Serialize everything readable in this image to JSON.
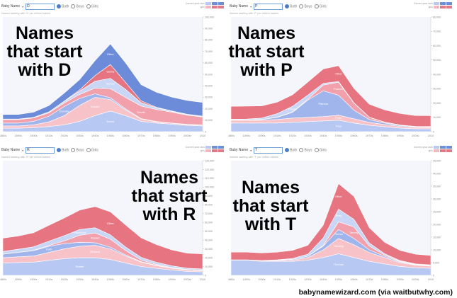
{
  "toolbar": {
    "name_label": "Baby Name",
    "opt_both": "Both",
    "opt_boys": "Boys",
    "opt_girls": "Girls",
    "ctl_row1": "Current year  rank",
    "ctl_row2": "girls"
  },
  "panels": [
    {
      "letter": "D",
      "input": "D",
      "subtitle": "Names starting with 'D' per million babies",
      "headline": [
        "Names",
        "that start",
        "with D"
      ]
    },
    {
      "letter": "P",
      "input": "P",
      "subtitle": "Names starting with 'P' per million babies",
      "headline": [
        "Names",
        "that start",
        "with P"
      ]
    },
    {
      "letter": "R",
      "input": "R",
      "subtitle": "Names starting with 'R' per million babies",
      "headline": [
        "Names",
        "that start",
        "with R"
      ]
    },
    {
      "letter": "T",
      "input": "T",
      "subtitle": "Names starting with 'T' per million babies",
      "headline": [
        "Names",
        "that start",
        "with T"
      ]
    }
  ],
  "credit": "babynamewizard.com (via waitbutwhy.com)",
  "colors": {
    "boy_light": "#b7c8f3",
    "boy_mid": "#9fb5ec",
    "boy_dark": "#6c8cd9",
    "girl_light": "#f8c2c9",
    "girl_mid": "#f2a0ac",
    "girl_dark": "#e67481"
  },
  "chart_data": [
    {
      "type": "area",
      "title": "Names that start with D",
      "x": [
        "1880s",
        "1890s",
        "1900s",
        "1910s",
        "1920s",
        "1930s",
        "1940s",
        "1950s",
        "1960s",
        "1970s",
        "1980s",
        "1990s",
        "2000s",
        "2010"
      ],
      "ylim": [
        0,
        100000
      ],
      "yticks": [
        "100,000",
        "90,000",
        "80,000",
        "70,000",
        "60,000",
        "50,000",
        "40,000",
        "30,000",
        "20,000",
        "10,000",
        "0"
      ],
      "series": [
        {
          "name": "David",
          "values": [
            3000,
            3000,
            3500,
            4500,
            6000,
            9000,
            14000,
            18000,
            14000,
            9000,
            7500,
            6500,
            5500,
            5000
          ]
        },
        {
          "name": "Donald",
          "values": [
            2000,
            2000,
            2500,
            4000,
            8000,
            14000,
            16000,
            10000,
            5000,
            2000,
            1000,
            800,
            700,
            600
          ]
        },
        {
          "name": "Dorothy",
          "values": [
            2500,
            2500,
            3000,
            5000,
            8000,
            6000,
            3000,
            1500,
            800,
            400,
            300,
            200,
            200,
            200
          ]
        },
        {
          "name": "Daniel",
          "values": [
            3000,
            3000,
            3000,
            3000,
            3000,
            3500,
            5000,
            8000,
            10000,
            11000,
            10500,
            9500,
            8000,
            7000
          ]
        },
        {
          "name": "Dennis",
          "values": [
            500,
            500,
            500,
            800,
            1500,
            3000,
            6000,
            9000,
            7000,
            3000,
            1500,
            800,
            600,
            500
          ]
        },
        {
          "name": "Debra",
          "values": [
            0,
            0,
            0,
            0,
            200,
            1000,
            5000,
            12000,
            6000,
            1500,
            500,
            300,
            200,
            200
          ]
        },
        {
          "name": "Other",
          "values": [
            4000,
            4000,
            4500,
            5500,
            7000,
            9000,
            13000,
            18000,
            17000,
            14000,
            13000,
            12000,
            12000,
            12000
          ]
        }
      ]
    },
    {
      "type": "area",
      "title": "Names that start with P",
      "x": [
        "1880s",
        "1890s",
        "1900s",
        "1910s",
        "1920s",
        "1930s",
        "1940s",
        "1950s",
        "1960s",
        "1970s",
        "1980s",
        "1990s",
        "2000s",
        "2010"
      ],
      "ylim": [
        0,
        80000
      ],
      "yticks": [
        "80,000",
        "70,000",
        "60,000",
        "50,000",
        "40,000",
        "30,000",
        "20,000",
        "10,000",
        "0"
      ],
      "series": [
        {
          "name": "Paul",
          "values": [
            6000,
            6000,
            6000,
            6000,
            6500,
            7000,
            7500,
            8000,
            6000,
            4500,
            3500,
            2500,
            2000,
            2000
          ]
        },
        {
          "name": "Peter",
          "values": [
            2000,
            2000,
            2000,
            2500,
            3000,
            3000,
            3000,
            3500,
            3000,
            2000,
            1500,
            1200,
            1000,
            1000
          ]
        },
        {
          "name": "Patricia",
          "values": [
            200,
            200,
            500,
            1500,
            4000,
            12000,
            18000,
            14000,
            6000,
            2000,
            1000,
            600,
            400,
            300
          ]
        },
        {
          "name": "Pamela",
          "values": [
            0,
            0,
            0,
            100,
            200,
            600,
            4000,
            9000,
            5000,
            1500,
            600,
            300,
            200,
            200
          ]
        },
        {
          "name": "Phyllis",
          "values": [
            500,
            600,
            1000,
            2500,
            4000,
            3000,
            1200,
            500,
            200,
            100,
            100,
            100,
            100,
            100
          ]
        },
        {
          "name": "Other",
          "values": [
            9000,
            9000,
            8500,
            8000,
            8000,
            9000,
            10000,
            11000,
            10000,
            9000,
            8500,
            8000,
            7500,
            7500
          ]
        }
      ]
    },
    {
      "type": "area",
      "title": "Names that start with R",
      "x": [
        "1880s",
        "1890s",
        "1900s",
        "1910s",
        "1920s",
        "1930s",
        "1940s",
        "1950s",
        "1960s",
        "1970s",
        "1980s",
        "1990s",
        "2000s",
        "2010"
      ],
      "ylim": [
        0,
        130000
      ],
      "yticks": [
        "130,000",
        "120,000",
        "110,000",
        "100,000",
        "90,000",
        "80,000",
        "70,000",
        "60,000",
        "50,000",
        "40,000",
        "30,000",
        "20,000",
        "10,000",
        "0"
      ],
      "series": [
        {
          "name": "Robert",
          "values": [
            14000,
            14500,
            15000,
            17000,
            19000,
            20000,
            20000,
            18000,
            14000,
            10000,
            8000,
            6000,
            4500,
            4000
          ]
        },
        {
          "name": "Richard",
          "values": [
            6000,
            6500,
            7000,
            9000,
            11000,
            13000,
            14000,
            12000,
            8000,
            5000,
            3000,
            2000,
            1500,
            1200
          ]
        },
        {
          "name": "Ruth",
          "values": [
            4000,
            5000,
            6000,
            7000,
            6000,
            4500,
            3000,
            2000,
            1000,
            500,
            400,
            300,
            300,
            300
          ]
        },
        {
          "name": "Ronald",
          "values": [
            100,
            100,
            300,
            800,
            3000,
            8000,
            11000,
            9000,
            5000,
            2000,
            900,
            500,
            300,
            300
          ]
        },
        {
          "name": "Raymond",
          "values": [
            3000,
            3500,
            4000,
            5000,
            6000,
            6500,
            6000,
            5000,
            4000,
            3000,
            2500,
            2000,
            1500,
            1500
          ]
        },
        {
          "name": "Other",
          "values": [
            15000,
            15000,
            16000,
            18000,
            20000,
            22000,
            24000,
            26000,
            25000,
            22000,
            20000,
            18000,
            17000,
            17000
          ]
        }
      ]
    },
    {
      "type": "area",
      "title": "Names that start with T",
      "x": [
        "1880s",
        "1890s",
        "1900s",
        "1910s",
        "1920s",
        "1930s",
        "1940s",
        "1950s",
        "1960s",
        "1970s",
        "1980s",
        "1990s",
        "2000s",
        "2010"
      ],
      "ylim": [
        0,
        45000
      ],
      "yticks": [
        "45,000",
        "40,000",
        "35,000",
        "30,000",
        "25,000",
        "20,000",
        "15,000",
        "10,000",
        "5,000",
        "0"
      ],
      "series": [
        {
          "name": "Thomas",
          "values": [
            6000,
            6000,
            5500,
            5500,
            5500,
            6000,
            7000,
            8500,
            7000,
            5500,
            4500,
            3500,
            3000,
            2800
          ]
        },
        {
          "name": "Timothy",
          "values": [
            100,
            100,
            200,
            300,
            500,
            1000,
            3000,
            6000,
            5000,
            3500,
            2500,
            1500,
            1000,
            800
          ]
        },
        {
          "name": "Teresa",
          "values": [
            0,
            0,
            100,
            200,
            300,
            500,
            1500,
            3500,
            2500,
            1000,
            500,
            300,
            200,
            200
          ]
        },
        {
          "name": "Tammy",
          "values": [
            0,
            0,
            0,
            0,
            0,
            0,
            200,
            3000,
            4500,
            1500,
            500,
            200,
            100,
            100
          ]
        },
        {
          "name": "Terry",
          "values": [
            0,
            0,
            0,
            100,
            300,
            800,
            3000,
            5000,
            3000,
            1200,
            500,
            300,
            200,
            200
          ]
        },
        {
          "name": "Other",
          "values": [
            3000,
            3000,
            3000,
            3000,
            3200,
            3500,
            5000,
            10000,
            9000,
            6000,
            4500,
            4000,
            3800,
            3700
          ]
        }
      ]
    }
  ]
}
